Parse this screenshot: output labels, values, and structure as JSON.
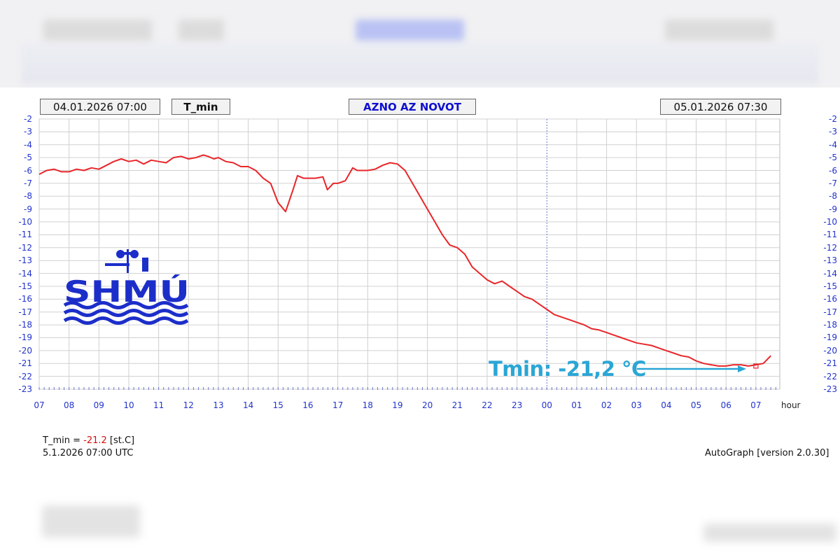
{
  "header": {
    "start_time": "04.01.2026 07:00",
    "variable": "T_min",
    "station": "AZNO AZ NOVOT",
    "end_time": "05.01.2026 07:30"
  },
  "logo": {
    "text": "SHMÚ"
  },
  "annotation": {
    "text": "Tmin: -21,2 °C",
    "color": "#2aa6d6"
  },
  "footer": {
    "label_prefix": "T_min = ",
    "value": "-21.2",
    "unit": " [st.C]",
    "timestamp": "5.1.2026 07:00 UTC",
    "software": "AutoGraph [version 2.0.30]"
  },
  "colors": {
    "line": "#e8262a",
    "axis_text": "#2233cc",
    "grid": "#d0d0d0",
    "midnight": "#6677cc"
  },
  "chart_data": {
    "type": "line",
    "title": "AZNO AZ NOVOT",
    "xlabel": "hour",
    "ylabel": "",
    "ylim": [
      -23,
      -2
    ],
    "xlim": [
      7,
      31.8
    ],
    "grid": true,
    "midnight_marker_x": 24,
    "x_tick_labels": [
      "07",
      "08",
      "09",
      "10",
      "11",
      "12",
      "13",
      "14",
      "15",
      "16",
      "17",
      "18",
      "19",
      "20",
      "21",
      "22",
      "23",
      "00",
      "01",
      "02",
      "03",
      "04",
      "05",
      "06",
      "07"
    ],
    "y_tick_labels": [
      "-2",
      "-3",
      "-4",
      "-5",
      "-6",
      "-7",
      "-8",
      "-9",
      "-10",
      "-11",
      "-12",
      "-13",
      "-14",
      "-15",
      "-16",
      "-17",
      "-18",
      "-19",
      "-20",
      "-21",
      "-22",
      "-23"
    ],
    "series": [
      {
        "name": "T_min",
        "x": [
          7.0,
          7.25,
          7.5,
          7.75,
          8.0,
          8.25,
          8.5,
          8.75,
          9.0,
          9.25,
          9.5,
          9.75,
          10.0,
          10.25,
          10.5,
          10.75,
          11.0,
          11.25,
          11.5,
          11.75,
          12.0,
          12.25,
          12.5,
          12.65,
          12.85,
          13.0,
          13.25,
          13.5,
          13.75,
          14.0,
          14.25,
          14.5,
          14.75,
          15.0,
          15.25,
          15.5,
          15.65,
          15.85,
          16.0,
          16.25,
          16.5,
          16.65,
          16.85,
          17.0,
          17.25,
          17.5,
          17.65,
          17.85,
          18.0,
          18.25,
          18.5,
          18.75,
          19.0,
          19.25,
          19.5,
          19.75,
          20.0,
          20.25,
          20.5,
          20.75,
          21.0,
          21.25,
          21.5,
          21.75,
          22.0,
          22.25,
          22.5,
          22.75,
          23.0,
          23.25,
          23.5,
          23.75,
          24.0,
          24.25,
          24.5,
          24.75,
          25.0,
          25.25,
          25.5,
          25.75,
          26.0,
          26.25,
          26.5,
          26.75,
          27.0,
          27.25,
          27.5,
          27.75,
          28.0,
          28.25,
          28.5,
          28.75,
          29.0,
          29.25,
          29.5,
          29.75,
          30.0,
          30.25,
          30.5,
          30.75,
          31.0,
          31.25,
          31.5
        ],
        "y": [
          -6.3,
          -6.0,
          -5.9,
          -6.1,
          -6.1,
          -5.9,
          -6.0,
          -5.8,
          -5.9,
          -5.6,
          -5.3,
          -5.1,
          -5.3,
          -5.2,
          -5.5,
          -5.2,
          -5.3,
          -5.4,
          -5.0,
          -4.9,
          -5.1,
          -5.0,
          -4.8,
          -4.9,
          -5.1,
          -5.0,
          -5.3,
          -5.4,
          -5.7,
          -5.7,
          -6.0,
          -6.6,
          -7.0,
          -8.5,
          -9.2,
          -7.5,
          -6.4,
          -6.6,
          -6.6,
          -6.6,
          -6.5,
          -7.5,
          -7.0,
          -7.0,
          -6.8,
          -5.8,
          -6.0,
          -6.0,
          -6.0,
          -5.9,
          -5.6,
          -5.4,
          -5.5,
          -6.0,
          -7.0,
          -8.0,
          -9.0,
          -10.0,
          -11.0,
          -11.8,
          -12.0,
          -12.5,
          -13.5,
          -14.0,
          -14.5,
          -14.8,
          -14.6,
          -15.0,
          -15.4,
          -15.8,
          -16.0,
          -16.4,
          -16.8,
          -17.2,
          -17.4,
          -17.6,
          -17.8,
          -18.0,
          -18.3,
          -18.4,
          -18.6,
          -18.8,
          -19.0,
          -19.2,
          -19.4,
          -19.5,
          -19.6,
          -19.8,
          -20.0,
          -20.2,
          -20.4,
          -20.5,
          -20.8,
          -21.0,
          -21.1,
          -21.2,
          -21.2,
          -21.1,
          -21.1,
          -21.2,
          -21.1,
          -21.0,
          -20.4
        ]
      }
    ],
    "min_marker": {
      "x": 31.0,
      "y": -21.2
    }
  }
}
